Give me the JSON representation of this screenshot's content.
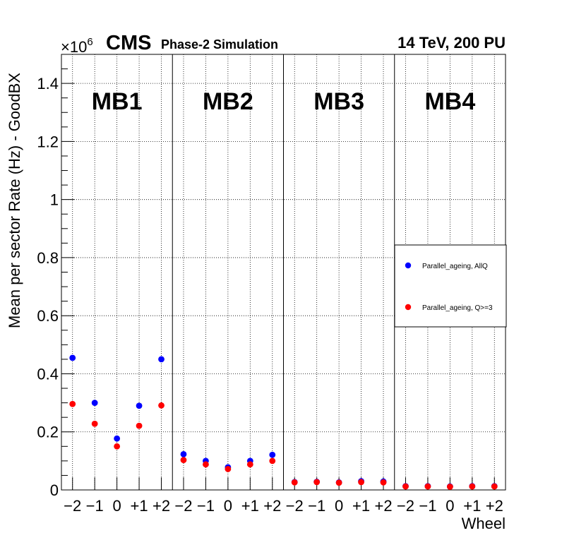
{
  "chart_data": {
    "type": "scatter",
    "header": {
      "experiment": "CMS",
      "status": "Phase-2 Simulation",
      "energy": "14 TeV, 200 PU"
    },
    "ylabel": "Mean per sector Rate (Hz) - GoodBX",
    "xlabel": "Wheel",
    "y_exponent_base": "×10",
    "y_exponent_power": "6",
    "ylim": [
      0,
      1.5
    ],
    "yticks": [
      0,
      0.2,
      0.4,
      0.6,
      0.8,
      1,
      1.2,
      1.4
    ],
    "ytick_labels": [
      "0",
      "0.2",
      "0.4",
      "0.6",
      "0.8",
      "1",
      "1.2",
      "1.4"
    ],
    "wheels": [
      "−2",
      "−1",
      "0",
      "+1",
      "+2"
    ],
    "stations": [
      "MB1",
      "MB2",
      "MB3",
      "MB4"
    ],
    "series": [
      {
        "name": "Parallel_ageing, AllQ",
        "color": "#0000ff",
        "values": [
          [
            0.455,
            0.3,
            0.177,
            0.29,
            0.45
          ],
          [
            0.123,
            0.1,
            0.078,
            0.1,
            0.121
          ],
          [
            0.027,
            0.028,
            0.026,
            0.03,
            0.029
          ],
          [
            0.013,
            0.013,
            0.012,
            0.013,
            0.013
          ]
        ]
      },
      {
        "name": "Parallel_ageing, Q>=3",
        "color": "#ff0000",
        "values": [
          [
            0.296,
            0.228,
            0.15,
            0.221,
            0.291
          ],
          [
            0.103,
            0.088,
            0.072,
            0.088,
            0.1
          ],
          [
            0.026,
            0.027,
            0.025,
            0.027,
            0.026
          ],
          [
            0.012,
            0.012,
            0.011,
            0.012,
            0.012
          ]
        ]
      }
    ],
    "legend_position": "right-middle",
    "grid": true
  }
}
